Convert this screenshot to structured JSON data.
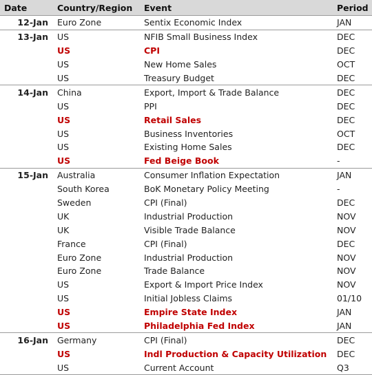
{
  "headers": {
    "date": "Date",
    "country": "Country/Region",
    "event": "Event",
    "period": "Period"
  },
  "groups": [
    {
      "date": "12-Jan",
      "rows": [
        {
          "country": "Euro Zone",
          "event": "Sentix Economic Index",
          "period": "JAN",
          "highlight": false
        }
      ]
    },
    {
      "date": "13-Jan",
      "rows": [
        {
          "country": "US",
          "event": "NFIB Small Business Index",
          "period": "DEC",
          "highlight": false
        },
        {
          "country": "US",
          "event": "CPI",
          "period": "DEC",
          "highlight": true
        },
        {
          "country": "US",
          "event": "New Home Sales",
          "period": "OCT",
          "highlight": false
        },
        {
          "country": "US",
          "event": "Treasury Budget",
          "period": "DEC",
          "highlight": false
        }
      ]
    },
    {
      "date": "14-Jan",
      "rows": [
        {
          "country": "China",
          "event": "Export, Import & Trade Balance",
          "period": "DEC",
          "highlight": false
        },
        {
          "country": "US",
          "event": "PPI",
          "period": "DEC",
          "highlight": false
        },
        {
          "country": "US",
          "event": "Retail Sales",
          "period": "DEC",
          "highlight": true
        },
        {
          "country": "US",
          "event": "Business Inventories",
          "period": "OCT",
          "highlight": false
        },
        {
          "country": "US",
          "event": "Existing Home Sales",
          "period": "DEC",
          "highlight": false
        },
        {
          "country": "US",
          "event": "Fed Beige Book",
          "period": "-",
          "highlight": true
        }
      ]
    },
    {
      "date": "15-Jan",
      "rows": [
        {
          "country": "Australia",
          "event": "Consumer Inflation Expectation",
          "period": "JAN",
          "highlight": false
        },
        {
          "country": "South Korea",
          "event": "BoK Monetary Policy Meeting",
          "period": "-",
          "highlight": false
        },
        {
          "country": "Sweden",
          "event": "CPI (Final)",
          "period": "DEC",
          "highlight": false
        },
        {
          "country": "UK",
          "event": "Industrial Production",
          "period": "NOV",
          "highlight": false
        },
        {
          "country": "UK",
          "event": "Visible Trade Balance",
          "period": "NOV",
          "highlight": false
        },
        {
          "country": "France",
          "event": "CPI (Final)",
          "period": "DEC",
          "highlight": false
        },
        {
          "country": "Euro Zone",
          "event": "Industrial Production",
          "period": "NOV",
          "highlight": false
        },
        {
          "country": "Euro Zone",
          "event": "Trade Balance",
          "period": "NOV",
          "highlight": false
        },
        {
          "country": "US",
          "event": "Export & Import Price Index",
          "period": "NOV",
          "highlight": false
        },
        {
          "country": "US",
          "event": "Initial Jobless Claims",
          "period": "01/10",
          "highlight": false
        },
        {
          "country": "US",
          "event": "Empire State Index",
          "period": "JAN",
          "highlight": true
        },
        {
          "country": "US",
          "event": "Philadelphia Fed Index",
          "period": "JAN",
          "highlight": true
        }
      ]
    },
    {
      "date": "16-Jan",
      "rows": [
        {
          "country": "Germany",
          "event": "CPI (Final)",
          "period": "DEC",
          "highlight": false
        },
        {
          "country": "US",
          "event": "Indl Production & Capacity Utilization",
          "period": "DEC",
          "highlight": true
        },
        {
          "country": "US",
          "event": "Current Account",
          "period": "Q3",
          "highlight": false
        }
      ]
    }
  ]
}
